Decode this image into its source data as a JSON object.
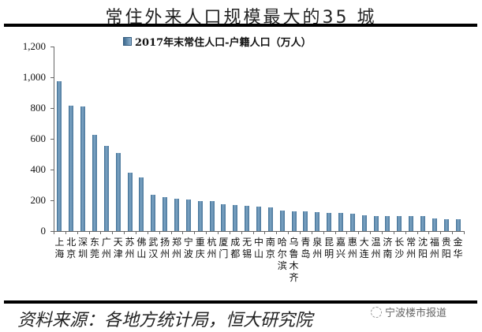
{
  "title": "常住外来人口规模最大的35 城",
  "legend": {
    "label": "2017年末常住人口-户籍人口（万人）"
  },
  "source": "资料来源：各地方统计局，恒大研究院",
  "watermark": "宁波楼市报道",
  "colors": {
    "bar": "#5a86ab",
    "axis": "#666666",
    "rule": "#000000"
  },
  "chart_data": {
    "type": "bar",
    "title": "常住外来人口规模最大的35 城",
    "xlabel": "",
    "ylabel": "",
    "ylim": [
      0,
      1200
    ],
    "yticks": [
      "0",
      "200",
      "400",
      "600",
      "800",
      "1,000",
      "1,200"
    ],
    "legend_position": "top",
    "grid": false,
    "series": [
      {
        "name": "2017年末常住人口-户籍人口（万人）",
        "values": [
          976,
          815,
          810,
          625,
          555,
          508,
          378,
          350,
          235,
          220,
          210,
          205,
          195,
          195,
          175,
          170,
          165,
          160,
          155,
          135,
          130,
          128,
          125,
          118,
          117,
          112,
          105,
          100,
          100,
          100,
          98,
          95,
          82,
          78,
          78
        ]
      }
    ],
    "categories": [
      "上海",
      "北京",
      "深圳",
      "东莞",
      "广州",
      "天津",
      "苏州",
      "佛山",
      "武汉",
      "扬州",
      "郑州",
      "宁波",
      "重庆",
      "杭州",
      "厦门",
      "成都",
      "无锡",
      "中山",
      "南京",
      "哈尔滨",
      "乌鲁木齐",
      "青岛",
      "泉州",
      "昆明",
      "嘉兴",
      "惠州",
      "大连",
      "温州",
      "济南",
      "长沙",
      "常州",
      "沈阳",
      "福州",
      "贵阳",
      "金华"
    ]
  }
}
